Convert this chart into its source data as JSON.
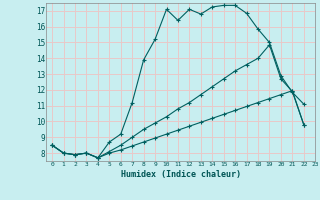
{
  "xlabel": "Humidex (Indice chaleur)",
  "background_color": "#c8eef0",
  "grid_color": "#e8c8c8",
  "line_color": "#006060",
  "xlim": [
    -0.5,
    23
  ],
  "ylim": [
    7.5,
    17.5
  ],
  "series": [
    {
      "x": [
        0,
        1,
        2,
        3,
        4,
        5,
        6,
        7,
        8,
        9,
        10,
        11,
        12,
        13,
        14,
        15,
        16,
        17,
        18,
        19,
        20,
        21,
        22
      ],
      "y": [
        8.5,
        8.0,
        7.9,
        8.0,
        7.7,
        8.7,
        9.2,
        11.2,
        13.9,
        15.2,
        17.1,
        16.4,
        17.1,
        16.8,
        17.25,
        17.35,
        17.35,
        16.85,
        15.85,
        15.0,
        12.9,
        11.85,
        11.1
      ]
    },
    {
      "x": [
        0,
        1,
        2,
        3,
        4,
        5,
        6,
        7,
        8,
        9,
        10,
        11,
        12,
        13,
        14,
        15,
        16,
        17,
        18,
        19,
        20,
        21,
        22
      ],
      "y": [
        8.5,
        8.0,
        7.9,
        8.0,
        7.7,
        8.1,
        8.5,
        9.0,
        9.5,
        9.9,
        10.3,
        10.8,
        11.2,
        11.7,
        12.2,
        12.7,
        13.2,
        13.6,
        14.0,
        14.85,
        12.7,
        11.9,
        9.8
      ]
    },
    {
      "x": [
        0,
        1,
        2,
        3,
        4,
        5,
        6,
        7,
        8,
        9,
        10,
        11,
        12,
        13,
        14,
        15,
        16,
        17,
        18,
        19,
        20,
        21,
        22
      ],
      "y": [
        8.5,
        8.0,
        7.9,
        8.0,
        7.7,
        8.0,
        8.2,
        8.45,
        8.7,
        8.95,
        9.2,
        9.45,
        9.7,
        9.95,
        10.2,
        10.45,
        10.7,
        10.95,
        11.2,
        11.45,
        11.7,
        11.95,
        9.8
      ]
    }
  ],
  "yticks": [
    8,
    9,
    10,
    11,
    12,
    13,
    14,
    15,
    16,
    17
  ],
  "xticks": [
    0,
    1,
    2,
    3,
    4,
    5,
    6,
    7,
    8,
    9,
    10,
    11,
    12,
    13,
    14,
    15,
    16,
    17,
    18,
    19,
    20,
    21,
    22,
    23
  ]
}
